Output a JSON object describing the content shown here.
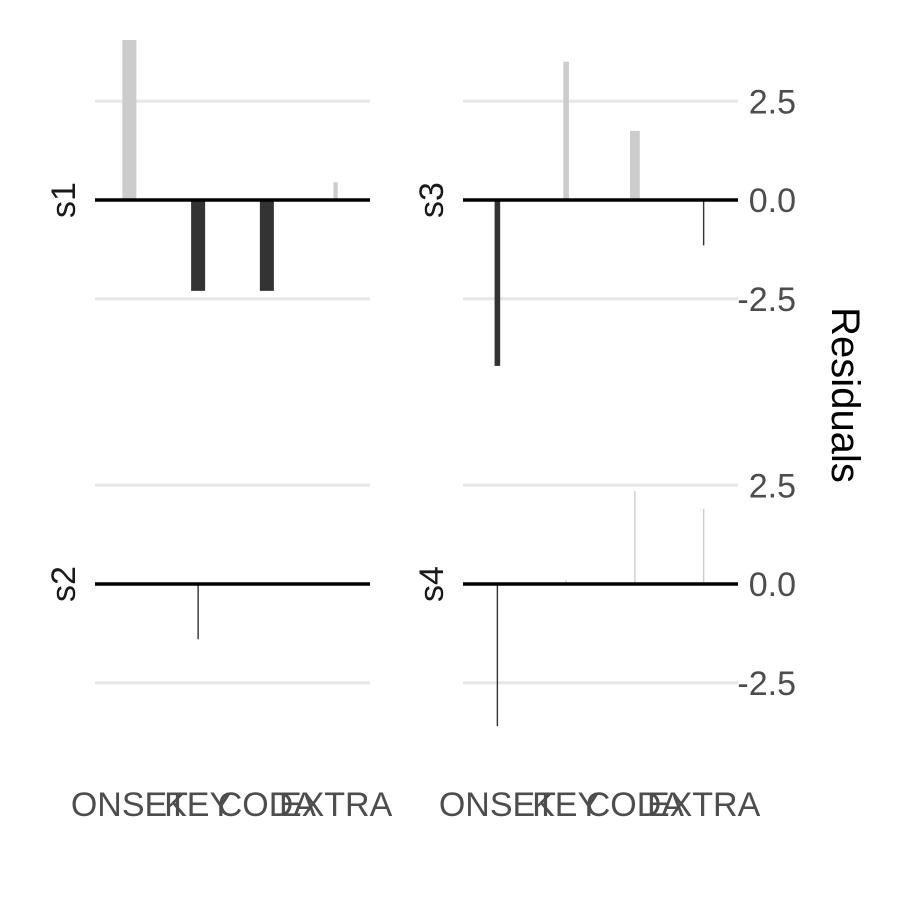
{
  "chart_data": {
    "type": "bar",
    "categories": [
      "ONSET",
      "KEY",
      "CODA",
      "EXTRA"
    ],
    "ylabel": "Residuals",
    "ylim": [
      -4.0,
      4.0
    ],
    "y_ticks": [
      2.5,
      0.0,
      -2.5
    ],
    "y_tick_labels": [
      "2.5",
      "0.0",
      "-2.5"
    ],
    "grid": true,
    "colors": {
      "positive": "#cccccc",
      "negative": "#333333",
      "grid": "#e6e6e6",
      "zero_line": "#000000"
    },
    "panels": [
      {
        "name": "s1",
        "values": [
          4.05,
          -2.3,
          -2.3,
          0.45
        ],
        "weights": [
          1.0,
          1.0,
          1.0,
          0.3
        ]
      },
      {
        "name": "s2",
        "values": [
          0.0,
          -1.4,
          0.0,
          0.0
        ],
        "weights": [
          0.0,
          0.1,
          0.0,
          0.0
        ]
      },
      {
        "name": "s3",
        "values": [
          -4.2,
          3.5,
          1.75,
          -1.15
        ],
        "weights": [
          0.4,
          0.4,
          0.7,
          0.1
        ]
      },
      {
        "name": "s4",
        "values": [
          -3.6,
          0.1,
          2.35,
          1.9
        ],
        "weights": [
          0.1,
          0.05,
          0.1,
          0.1
        ]
      }
    ]
  }
}
